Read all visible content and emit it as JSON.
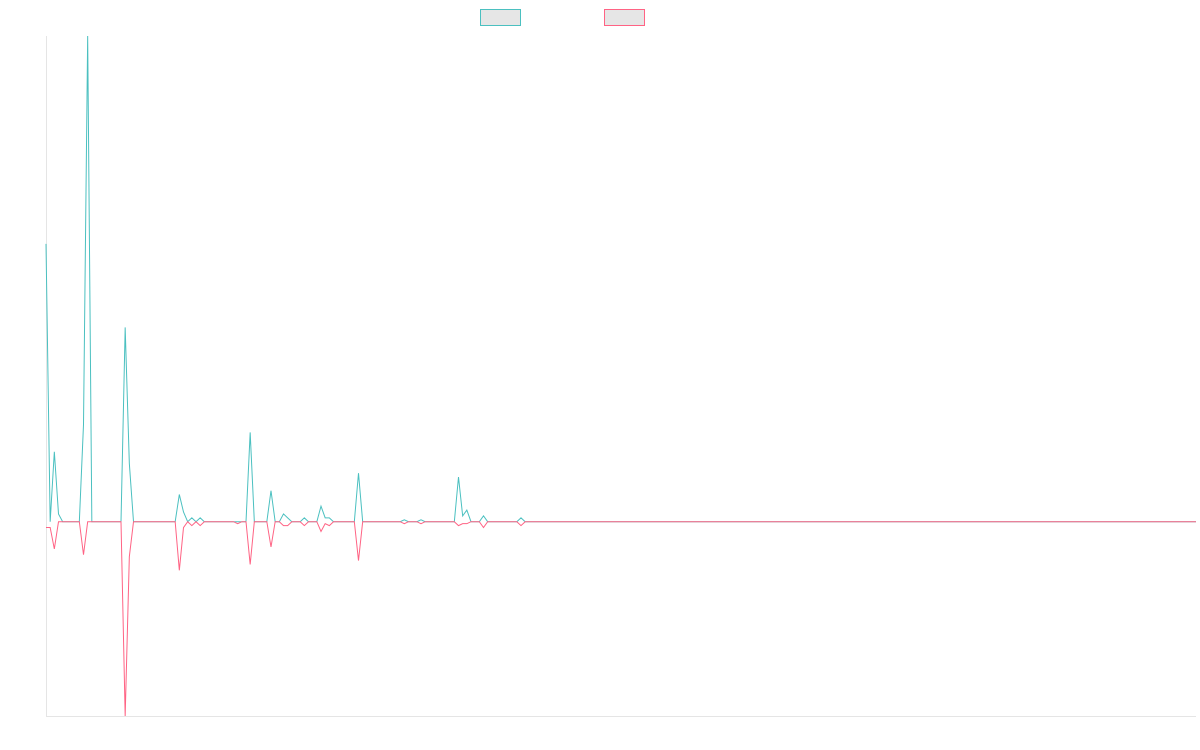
{
  "colors": {
    "series_1_stroke": "#4bc0c0",
    "series_1_fill": "#e6e6e6",
    "series_2_stroke": "#ff6384",
    "series_2_fill": "#e6e6e6",
    "axis": "#e5e5e5"
  },
  "chart_data": {
    "type": "line",
    "title": "",
    "xlabel": "",
    "ylabel": "",
    "grid": false,
    "legend": {
      "position": "top-center",
      "labels": [
        "",
        ""
      ]
    },
    "x_range": [
      0,
      276
    ],
    "ylim": [
      -1,
      2.5
    ],
    "baseline": 0,
    "series": [
      {
        "points": [
          [
            0,
            1.43
          ],
          [
            1,
            0
          ],
          [
            2,
            0.36
          ],
          [
            3,
            0.04
          ],
          [
            4,
            0
          ],
          [
            5,
            0
          ],
          [
            6,
            0
          ],
          [
            7,
            0
          ],
          [
            8,
            0
          ],
          [
            9,
            0.5
          ],
          [
            10,
            2.5
          ],
          [
            11,
            0
          ],
          [
            12,
            0
          ],
          [
            13,
            0
          ],
          [
            14,
            0
          ],
          [
            15,
            0
          ],
          [
            16,
            0
          ],
          [
            17,
            0
          ],
          [
            18,
            0
          ],
          [
            19,
            1
          ],
          [
            20,
            0.3
          ],
          [
            21,
            0
          ],
          [
            22,
            0
          ],
          [
            23,
            0
          ],
          [
            24,
            0
          ],
          [
            25,
            0
          ],
          [
            26,
            0
          ],
          [
            27,
            0
          ],
          [
            28,
            0
          ],
          [
            29,
            0
          ],
          [
            30,
            0
          ],
          [
            31,
            0
          ],
          [
            32,
            0.14
          ],
          [
            33,
            0.05
          ],
          [
            34,
            0
          ],
          [
            35,
            0.02
          ],
          [
            36,
            0
          ],
          [
            37,
            0.02
          ],
          [
            38,
            0
          ],
          [
            39,
            0
          ],
          [
            40,
            0
          ],
          [
            41,
            0
          ],
          [
            42,
            0
          ],
          [
            43,
            0
          ],
          [
            44,
            0
          ],
          [
            45,
            0
          ],
          [
            46,
            0
          ],
          [
            47,
            0
          ],
          [
            48,
            0
          ],
          [
            49,
            0.46
          ],
          [
            50,
            0
          ],
          [
            51,
            0
          ],
          [
            52,
            0
          ],
          [
            53,
            0
          ],
          [
            54,
            0.16
          ],
          [
            55,
            0
          ],
          [
            56,
            0
          ],
          [
            57,
            0.04
          ],
          [
            58,
            0.02
          ],
          [
            59,
            0
          ],
          [
            60,
            0
          ],
          [
            61,
            0
          ],
          [
            62,
            0.02
          ],
          [
            63,
            0
          ],
          [
            64,
            0
          ],
          [
            65,
            0
          ],
          [
            66,
            0.08
          ],
          [
            67,
            0.02
          ],
          [
            68,
            0.02
          ],
          [
            69,
            0
          ],
          [
            70,
            0
          ],
          [
            71,
            0
          ],
          [
            72,
            0
          ],
          [
            73,
            0
          ],
          [
            74,
            0
          ],
          [
            75,
            0.25
          ],
          [
            76,
            0
          ],
          [
            77,
            0
          ],
          [
            78,
            0
          ],
          [
            79,
            0
          ],
          [
            80,
            0
          ],
          [
            81,
            0
          ],
          [
            82,
            0
          ],
          [
            83,
            0
          ],
          [
            84,
            0
          ],
          [
            85,
            0
          ],
          [
            86,
            0.01
          ],
          [
            87,
            0
          ],
          [
            88,
            0
          ],
          [
            89,
            0
          ],
          [
            90,
            0.01
          ],
          [
            91,
            0
          ],
          [
            92,
            0
          ],
          [
            93,
            0
          ],
          [
            94,
            0
          ],
          [
            95,
            0
          ],
          [
            96,
            0
          ],
          [
            97,
            0
          ],
          [
            98,
            0
          ],
          [
            99,
            0.23
          ],
          [
            100,
            0.03
          ],
          [
            101,
            0.06
          ],
          [
            102,
            0
          ],
          [
            103,
            0
          ],
          [
            104,
            0
          ],
          [
            105,
            0.03
          ],
          [
            106,
            0
          ],
          [
            107,
            0
          ],
          [
            108,
            0
          ],
          [
            109,
            0
          ],
          [
            110,
            0
          ],
          [
            111,
            0
          ],
          [
            112,
            0
          ],
          [
            113,
            0
          ],
          [
            114,
            0.02
          ],
          [
            115,
            0
          ],
          [
            116,
            0
          ],
          [
            117,
            0
          ],
          [
            118,
            0
          ],
          [
            119,
            0
          ],
          [
            120,
            0
          ],
          [
            276,
            0
          ]
        ]
      },
      {
        "points": [
          [
            0,
            -0.03
          ],
          [
            1,
            -0.03
          ],
          [
            2,
            -0.14
          ],
          [
            3,
            0
          ],
          [
            4,
            0
          ],
          [
            5,
            0
          ],
          [
            6,
            0
          ],
          [
            7,
            0
          ],
          [
            8,
            0
          ],
          [
            9,
            -0.17
          ],
          [
            10,
            0
          ],
          [
            11,
            0
          ],
          [
            12,
            0
          ],
          [
            13,
            0
          ],
          [
            14,
            0
          ],
          [
            15,
            0
          ],
          [
            16,
            0
          ],
          [
            17,
            0
          ],
          [
            18,
            0
          ],
          [
            19,
            -1
          ],
          [
            20,
            -0.18
          ],
          [
            21,
            0
          ],
          [
            22,
            0
          ],
          [
            23,
            0
          ],
          [
            24,
            0
          ],
          [
            25,
            0
          ],
          [
            26,
            0
          ],
          [
            27,
            0
          ],
          [
            28,
            0
          ],
          [
            29,
            0
          ],
          [
            30,
            0
          ],
          [
            31,
            0
          ],
          [
            32,
            -0.25
          ],
          [
            33,
            -0.03
          ],
          [
            34,
            0
          ],
          [
            35,
            -0.02
          ],
          [
            36,
            0
          ],
          [
            37,
            -0.02
          ],
          [
            38,
            0
          ],
          [
            39,
            0
          ],
          [
            40,
            0
          ],
          [
            41,
            0
          ],
          [
            42,
            0
          ],
          [
            43,
            0
          ],
          [
            44,
            0
          ],
          [
            45,
            0
          ],
          [
            46,
            -0.01
          ],
          [
            47,
            0
          ],
          [
            48,
            0
          ],
          [
            49,
            -0.22
          ],
          [
            50,
            0
          ],
          [
            51,
            0
          ],
          [
            52,
            0
          ],
          [
            53,
            0
          ],
          [
            54,
            -0.13
          ],
          [
            55,
            0
          ],
          [
            56,
            0
          ],
          [
            57,
            -0.02
          ],
          [
            58,
            -0.02
          ],
          [
            59,
            0
          ],
          [
            60,
            0
          ],
          [
            61,
            0
          ],
          [
            62,
            -0.02
          ],
          [
            63,
            0
          ],
          [
            64,
            0
          ],
          [
            65,
            0
          ],
          [
            66,
            -0.05
          ],
          [
            67,
            -0.01
          ],
          [
            68,
            -0.02
          ],
          [
            69,
            0
          ],
          [
            70,
            0
          ],
          [
            71,
            0
          ],
          [
            72,
            0
          ],
          [
            73,
            0
          ],
          [
            74,
            0
          ],
          [
            75,
            -0.2
          ],
          [
            76,
            0
          ],
          [
            77,
            0
          ],
          [
            78,
            0
          ],
          [
            79,
            0
          ],
          [
            80,
            0
          ],
          [
            81,
            0
          ],
          [
            82,
            0
          ],
          [
            83,
            0
          ],
          [
            84,
            0
          ],
          [
            85,
            0
          ],
          [
            86,
            -0.01
          ],
          [
            87,
            0
          ],
          [
            88,
            0
          ],
          [
            89,
            0
          ],
          [
            90,
            -0.01
          ],
          [
            91,
            0
          ],
          [
            92,
            0
          ],
          [
            93,
            0
          ],
          [
            94,
            0
          ],
          [
            95,
            0
          ],
          [
            96,
            0
          ],
          [
            97,
            0
          ],
          [
            98,
            0
          ],
          [
            99,
            -0.02
          ],
          [
            100,
            -0.01
          ],
          [
            101,
            -0.01
          ],
          [
            102,
            0
          ],
          [
            103,
            0
          ],
          [
            104,
            0
          ],
          [
            105,
            -0.03
          ],
          [
            106,
            0
          ],
          [
            107,
            0
          ],
          [
            108,
            0
          ],
          [
            109,
            0
          ],
          [
            110,
            0
          ],
          [
            111,
            0
          ],
          [
            112,
            0
          ],
          [
            113,
            0
          ],
          [
            114,
            -0.02
          ],
          [
            115,
            0
          ],
          [
            116,
            0
          ],
          [
            117,
            0
          ],
          [
            118,
            0
          ],
          [
            119,
            0
          ],
          [
            120,
            0
          ],
          [
            276,
            0
          ]
        ]
      }
    ]
  }
}
